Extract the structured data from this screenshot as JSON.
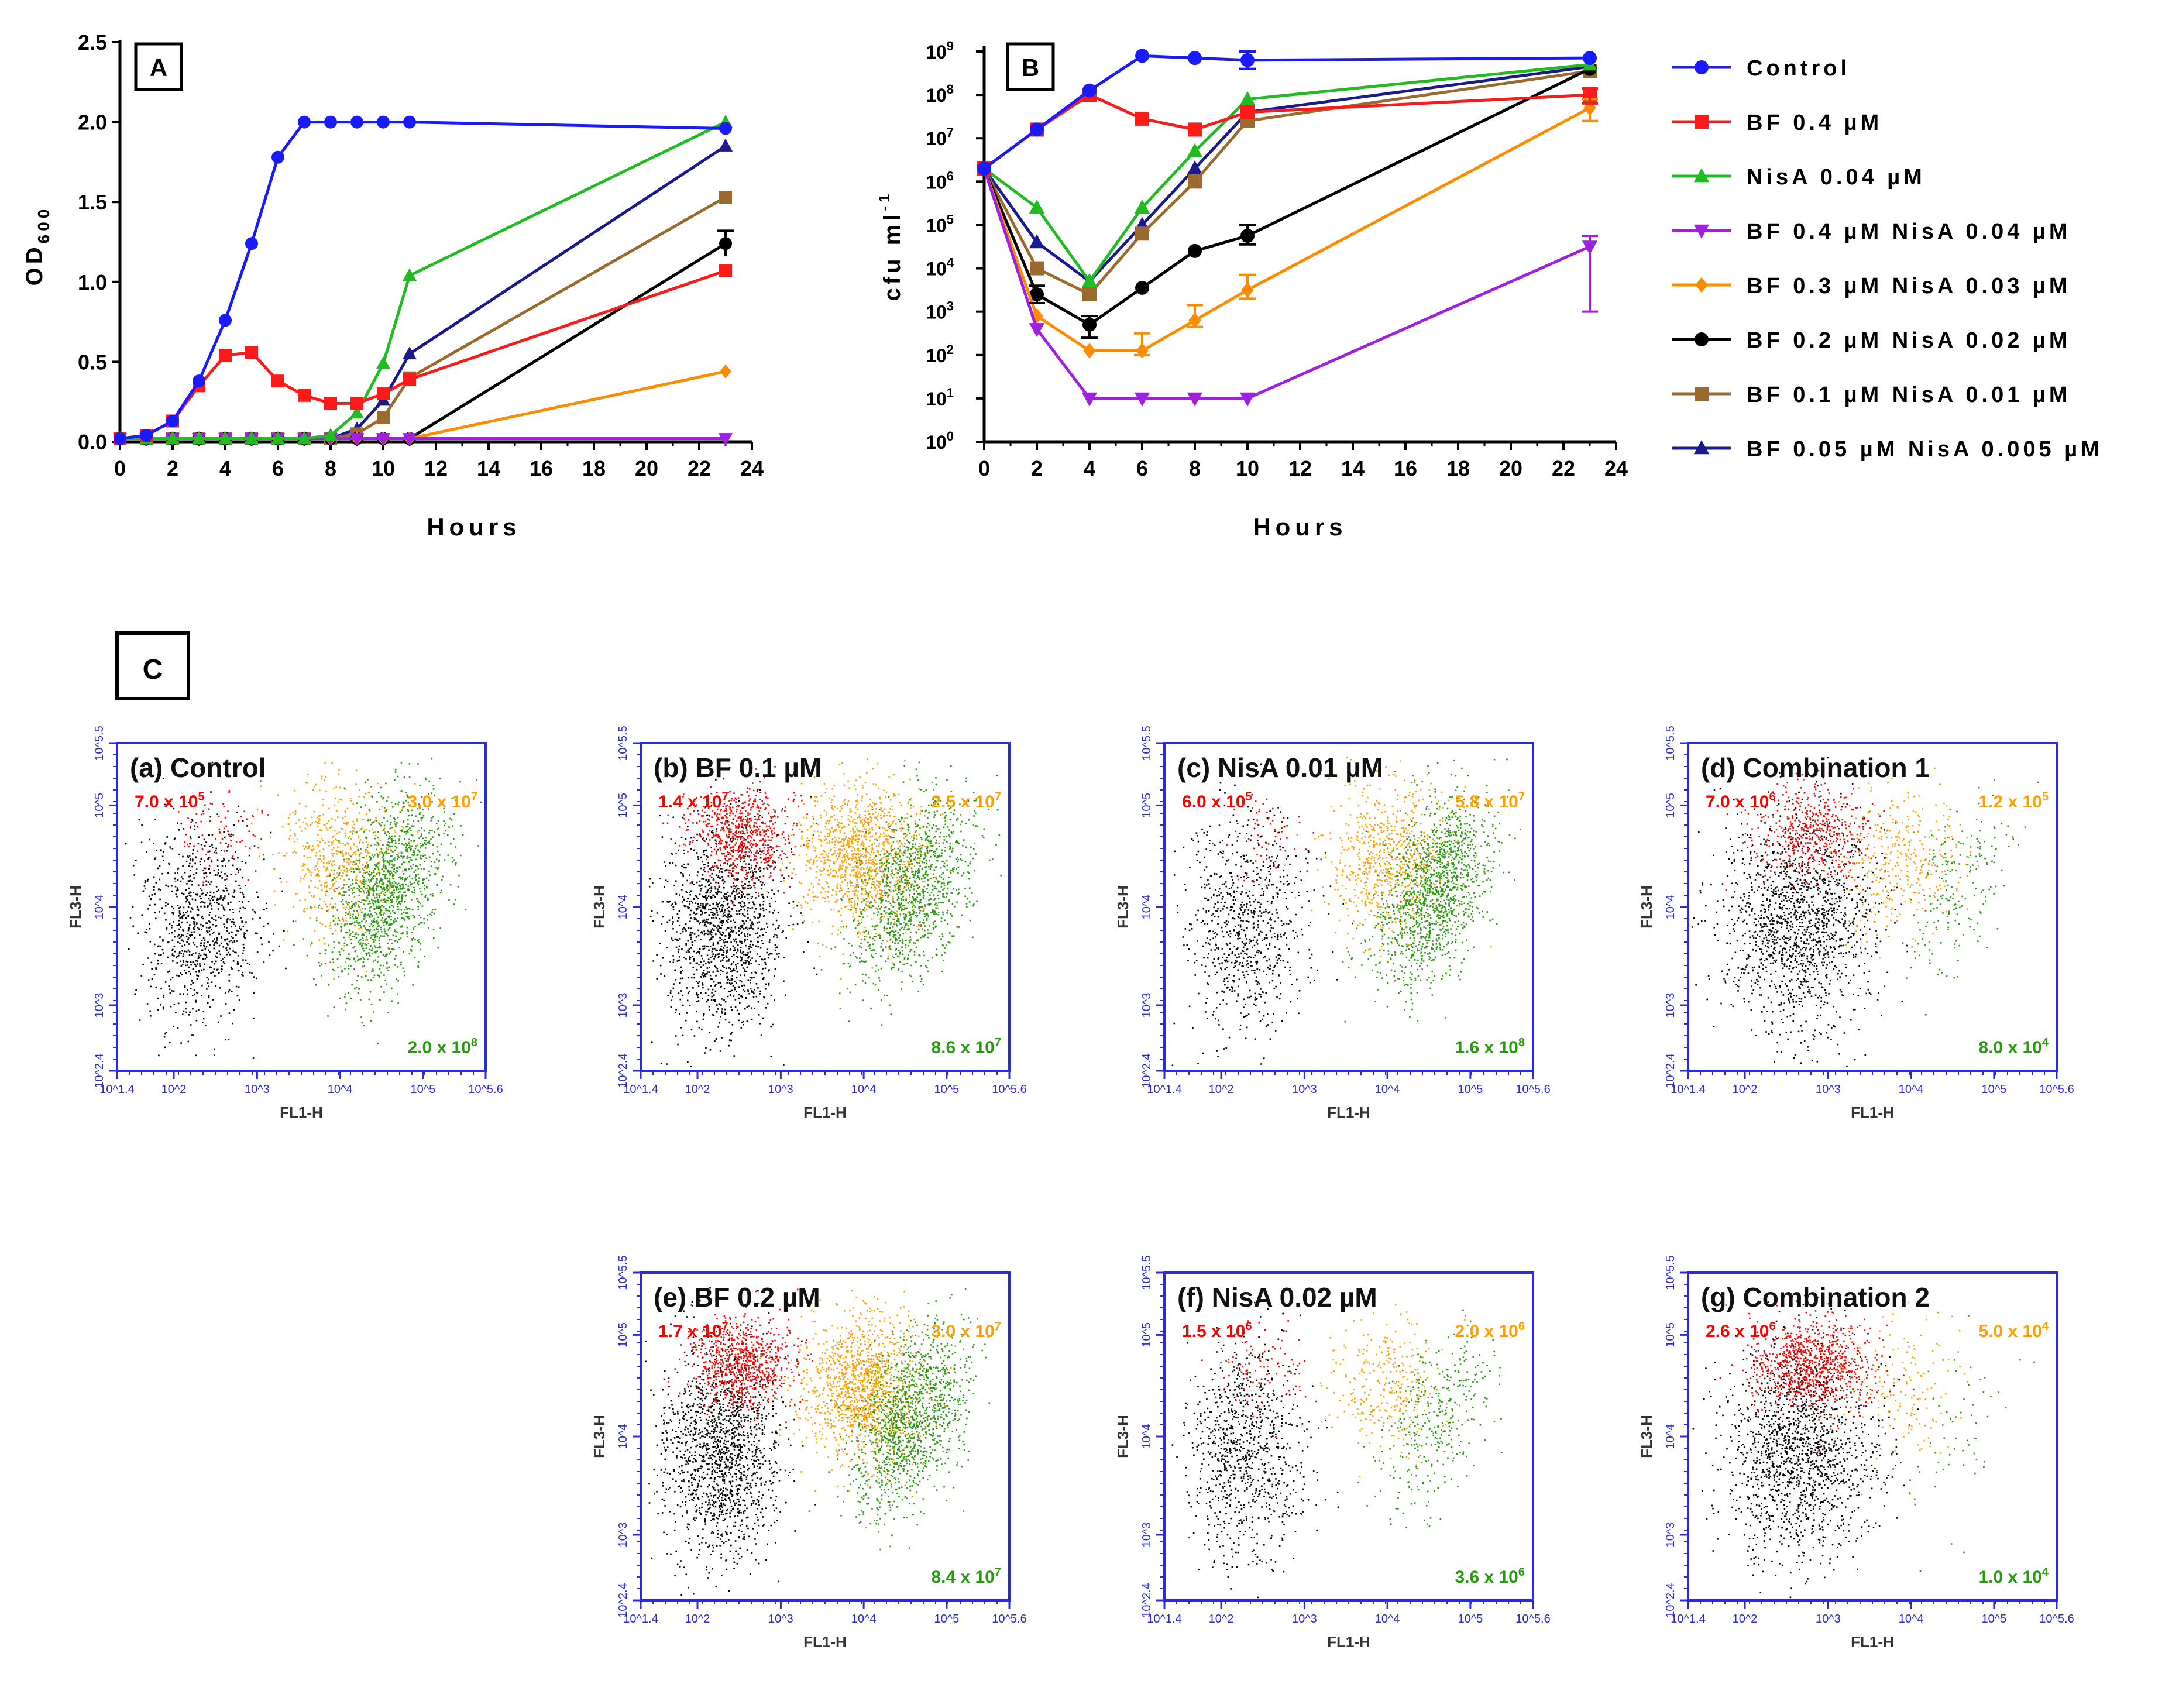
{
  "chart_data": [
    {
      "panel": "A",
      "type": "line",
      "xlabel": "Hours",
      "ylabel": "OD",
      "ylabel_sub": "600",
      "xlim": [
        0,
        24
      ],
      "ylim": [
        0,
        2.5
      ],
      "xticks": [
        "0",
        "2",
        "4",
        "6",
        "8",
        "10",
        "12",
        "14",
        "16",
        "18",
        "20",
        "22",
        "24"
      ],
      "yticks": [
        "0.0",
        "0.5",
        "1.0",
        "1.5",
        "2.0",
        "2.5"
      ],
      "series": [
        {
          "name": "Control",
          "color": "#1a1aff",
          "marker": "circle",
          "x": [
            0,
            1,
            2,
            3,
            4,
            5,
            6,
            7,
            8,
            9,
            10,
            11,
            23
          ],
          "y": [
            0.02,
            0.04,
            0.13,
            0.38,
            0.76,
            1.24,
            1.78,
            2.0,
            2.0,
            2.0,
            2.0,
            2.0,
            1.96
          ]
        },
        {
          "name": "BF 0.4 µM",
          "color": "#ff1a1a",
          "marker": "square",
          "x": [
            0,
            1,
            2,
            3,
            4,
            5,
            6,
            7,
            8,
            9,
            10,
            11,
            23
          ],
          "y": [
            0.02,
            0.04,
            0.13,
            0.35,
            0.54,
            0.56,
            0.38,
            0.29,
            0.24,
            0.24,
            0.3,
            0.39,
            1.07
          ]
        },
        {
          "name": "NisA 0.04 µM",
          "color": "#22bb22",
          "marker": "triangle-up",
          "x": [
            0,
            1,
            2,
            3,
            4,
            5,
            6,
            7,
            8,
            9,
            10,
            11,
            23
          ],
          "y": [
            0.02,
            0.02,
            0.02,
            0.02,
            0.02,
            0.02,
            0.02,
            0.02,
            0.04,
            0.18,
            0.49,
            1.04,
            2.0
          ]
        },
        {
          "name": "BF 0.4 µM NisA 0.04 µM",
          "color": "#a020e0",
          "marker": "triangle-down",
          "x": [
            0,
            1,
            2,
            3,
            4,
            5,
            6,
            7,
            8,
            9,
            10,
            11,
            23
          ],
          "y": [
            0.02,
            0.02,
            0.02,
            0.02,
            0.02,
            0.02,
            0.02,
            0.02,
            0.02,
            0.02,
            0.02,
            0.02,
            0.02
          ]
        },
        {
          "name": "BF 0.3 µM NisA 0.03 µM",
          "color": "#ff8c00",
          "marker": "diamond",
          "x": [
            0,
            1,
            2,
            3,
            4,
            5,
            6,
            7,
            8,
            9,
            10,
            11,
            23
          ],
          "y": [
            0.02,
            0.02,
            0.02,
            0.02,
            0.02,
            0.02,
            0.02,
            0.02,
            0.02,
            0.02,
            0.02,
            0.02,
            0.44
          ]
        },
        {
          "name": "BF 0.2 µM NisA 0.02 µM",
          "color": "#000000",
          "marker": "circle",
          "x": [
            0,
            1,
            2,
            3,
            4,
            5,
            6,
            7,
            8,
            9,
            10,
            11,
            23
          ],
          "y": [
            0.02,
            0.02,
            0.02,
            0.02,
            0.02,
            0.02,
            0.02,
            0.02,
            0.02,
            0.02,
            0.02,
            0.02,
            1.24
          ]
        },
        {
          "name": "BF 0.1 µM NisA 0.01 µM",
          "color": "#9b6a2f",
          "marker": "square",
          "x": [
            0,
            1,
            2,
            3,
            4,
            5,
            6,
            7,
            8,
            9,
            10,
            11,
            23
          ],
          "y": [
            0.02,
            0.02,
            0.02,
            0.02,
            0.02,
            0.02,
            0.02,
            0.02,
            0.02,
            0.05,
            0.15,
            0.4,
            1.53
          ]
        },
        {
          "name": "BF 0.05 µM NisA 0.005 µM",
          "color": "#1a1a8c",
          "marker": "triangle-up",
          "x": [
            0,
            1,
            2,
            3,
            4,
            5,
            6,
            7,
            8,
            9,
            10,
            11,
            23
          ],
          "y": [
            0.02,
            0.02,
            0.02,
            0.02,
            0.02,
            0.02,
            0.02,
            0.02,
            0.02,
            0.08,
            0.26,
            0.55,
            1.85
          ]
        }
      ]
    },
    {
      "panel": "B",
      "type": "line",
      "xlabel": "Hours",
      "ylabel": "cfu ml",
      "ylabel_sup": "-1",
      "yscale": "log",
      "xlim": [
        0,
        24
      ],
      "ylim_log10": [
        0,
        9
      ],
      "xticks": [
        "0",
        "2",
        "4",
        "6",
        "8",
        "10",
        "12",
        "14",
        "16",
        "18",
        "20",
        "22",
        "24"
      ],
      "ytick_base": "10",
      "ytick_exps": [
        "0",
        "1",
        "2",
        "3",
        "4",
        "5",
        "6",
        "7",
        "8",
        "9"
      ],
      "series": [
        {
          "name": "Control",
          "color": "#1a1aff",
          "marker": "circle",
          "x": [
            0,
            2,
            4,
            6,
            8,
            10,
            23
          ],
          "log10_y": [
            6.3,
            7.2,
            8.1,
            8.9,
            8.85,
            8.8,
            8.85
          ]
        },
        {
          "name": "BF 0.4 µM",
          "color": "#ff1a1a",
          "marker": "square",
          "x": [
            0,
            2,
            4,
            6,
            8,
            10,
            23
          ],
          "log10_y": [
            6.3,
            7.2,
            8.0,
            7.45,
            7.2,
            7.6,
            8.0
          ]
        },
        {
          "name": "NisA 0.04 µM",
          "color": "#22bb22",
          "marker": "triangle-up",
          "x": [
            0,
            2,
            4,
            6,
            8,
            10,
            23
          ],
          "log10_y": [
            6.3,
            5.4,
            3.7,
            5.4,
            6.7,
            7.9,
            8.7
          ]
        },
        {
          "name": "BF 0.4 µM NisA 0.04 µM",
          "color": "#a020e0",
          "marker": "triangle-down",
          "x": [
            0,
            2,
            4,
            6,
            8,
            10,
            23
          ],
          "log10_y": [
            6.3,
            2.6,
            1.0,
            1.0,
            1.0,
            1.0,
            4.5
          ]
        },
        {
          "name": "BF 0.3 µM NisA 0.03 µM",
          "color": "#ff8c00",
          "marker": "diamond",
          "x": [
            0,
            2,
            4,
            6,
            8,
            10,
            23
          ],
          "log10_y": [
            6.3,
            2.9,
            2.1,
            2.1,
            2.8,
            3.5,
            7.7
          ]
        },
        {
          "name": "BF 0.2 µM NisA 0.02 µM",
          "color": "#000000",
          "marker": "circle",
          "x": [
            0,
            2,
            4,
            6,
            8,
            10,
            23
          ],
          "log10_y": [
            6.3,
            3.4,
            2.7,
            3.55,
            4.4,
            4.75,
            8.6
          ]
        },
        {
          "name": "BF 0.1 µM NisA 0.01 µM",
          "color": "#9b6a2f",
          "marker": "square",
          "x": [
            0,
            2,
            4,
            6,
            8,
            10,
            23
          ],
          "log10_y": [
            6.3,
            4.0,
            3.4,
            4.8,
            6.0,
            7.4,
            8.55
          ]
        },
        {
          "name": "BF 0.05 µM NisA 0.005 µM",
          "color": "#1a1a8c",
          "marker": "triangle-up",
          "x": [
            0,
            2,
            4,
            6,
            8,
            10,
            23
          ],
          "log10_y": [
            6.3,
            4.6,
            3.7,
            5.0,
            6.3,
            7.6,
            8.65
          ]
        }
      ]
    }
  ],
  "panel_labels": {
    "A": "A",
    "B": "B",
    "C": "C"
  },
  "legend": [
    {
      "label": "Control",
      "color": "#1a1aff",
      "marker": "circle"
    },
    {
      "label": "BF 0.4 µM",
      "color": "#ff1a1a",
      "marker": "square"
    },
    {
      "label": "NisA 0.04 µM",
      "color": "#22bb22",
      "marker": "triangle-up"
    },
    {
      "label": "BF 0.4 µM NisA 0.04 µM",
      "color": "#a020e0",
      "marker": "triangle-down"
    },
    {
      "label": "BF 0.3 µM NisA 0.03 µM",
      "color": "#ff8c00",
      "marker": "diamond"
    },
    {
      "label": "BF 0.2 µM NisA 0.02 µM",
      "color": "#000000",
      "marker": "circle"
    },
    {
      "label": "BF 0.1 µM NisA 0.01 µM",
      "color": "#9b6a2f",
      "marker": "square"
    },
    {
      "label": "BF 0.05 µM NisA 0.005 µM",
      "color": "#1a1a8c",
      "marker": "triangle-up"
    }
  ],
  "flow": {
    "xlabel": "FL1-H",
    "ylabel": "FL3-H",
    "xticks": [
      "10^1.4",
      "10^2",
      "10^3",
      "10^4",
      "10^5",
      "10^5.6"
    ],
    "yticks": [
      "10^2.4",
      "10^3",
      "10^4",
      "10^5",
      "10^5.5"
    ],
    "quadrant_colors": {
      "red": "#ff0000",
      "orange": "#ffa000",
      "green": "#2a9a10",
      "black": "#000000"
    },
    "panels": [
      {
        "title": "(a) Control",
        "red": "7.0 x 10",
        "red_exp": "5",
        "orange": "3.0 x 10",
        "orange_exp": "7",
        "green": "2.0 x 10",
        "green_exp": "8"
      },
      {
        "title": "(b) BF 0.1 µM",
        "red": "1.4 x 10",
        "red_exp": "7",
        "orange": "2.5 x 10",
        "orange_exp": "7",
        "green": "8.6 x 10",
        "green_exp": "7"
      },
      {
        "title": "(c) NisA 0.01 µM",
        "red": "6.0 x 10",
        "red_exp": "5",
        "orange": "5.8 x 10",
        "orange_exp": "7",
        "green": "1.6 x 10",
        "green_exp": "8"
      },
      {
        "title": "(d) Combination 1",
        "red": "7.0 x 10",
        "red_exp": "6",
        "orange": "1.2 x 10",
        "orange_exp": "5",
        "green": "8.0 x 10",
        "green_exp": "4"
      },
      {
        "title": "(e) BF 0.2 µM",
        "red": "1.7 x 10",
        "red_exp": "7",
        "orange": "3.0 x 10",
        "orange_exp": "7",
        "green": "8.4 x 10",
        "green_exp": "7"
      },
      {
        "title": "(f) NisA 0.02 µM",
        "red": "1.5 x 10",
        "red_exp": "6",
        "orange": "2.0 x 10",
        "orange_exp": "6",
        "green": "3.6 x 10",
        "green_exp": "6"
      },
      {
        "title": "(g) Combination 2",
        "red": "2.6 x 10",
        "red_exp": "6",
        "orange": "5.0 x 10",
        "orange_exp": "4",
        "green": "1.0 x 10",
        "green_exp": "4"
      }
    ]
  }
}
